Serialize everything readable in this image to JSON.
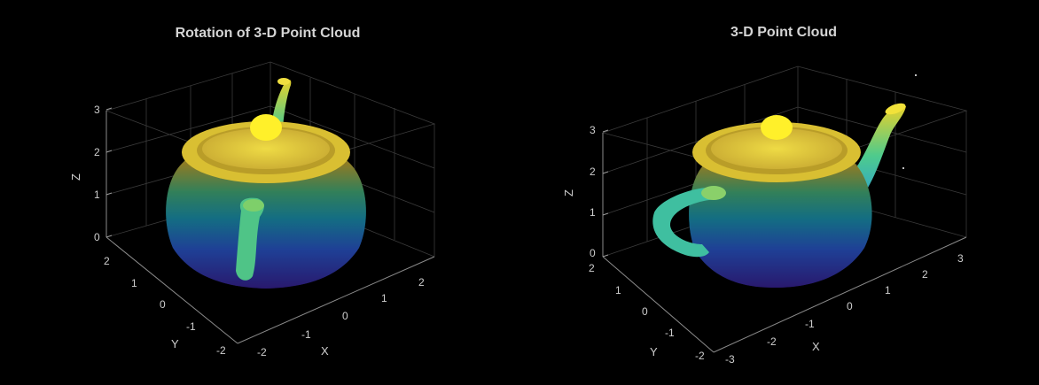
{
  "chart_data": [
    {
      "type": "scatter3d",
      "title": "Rotation of 3-D Point Cloud",
      "xlabel": "X",
      "ylabel": "Y",
      "zlabel": "Z",
      "x_ticks": [
        "-2",
        "-1",
        "0",
        "1",
        "2"
      ],
      "y_ticks": [
        "-2",
        "-1",
        "0",
        "1",
        "2"
      ],
      "z_ticks": [
        "0",
        "1",
        "2",
        "3"
      ],
      "xlim": [
        -2.5,
        2.5
      ],
      "ylim": [
        -2.5,
        2.5
      ],
      "zlim": [
        0,
        3.3
      ],
      "grid": true,
      "colormap": "parula",
      "spout_side": "back",
      "handle_side": "front"
    },
    {
      "type": "scatter3d",
      "title": "3-D Point Cloud",
      "xlabel": "X",
      "ylabel": "Y",
      "zlabel": "Z",
      "x_ticks": [
        "-3",
        "-2",
        "-1",
        "0",
        "1",
        "2",
        "3"
      ],
      "y_ticks": [
        "-2",
        "-1",
        "0",
        "1",
        "2"
      ],
      "z_ticks": [
        "0",
        "1",
        "2",
        "3"
      ],
      "xlim": [
        -3.2,
        3.4
      ],
      "ylim": [
        -2.2,
        2.2
      ],
      "zlim": [
        0,
        3.2
      ],
      "grid": true,
      "colormap": "parula",
      "spout_side": "right",
      "handle_side": "left"
    }
  ],
  "colors": {
    "background": "#000000",
    "low": "#3b2bd6",
    "mid": "#1fb5b0",
    "high": "#fff21e"
  }
}
